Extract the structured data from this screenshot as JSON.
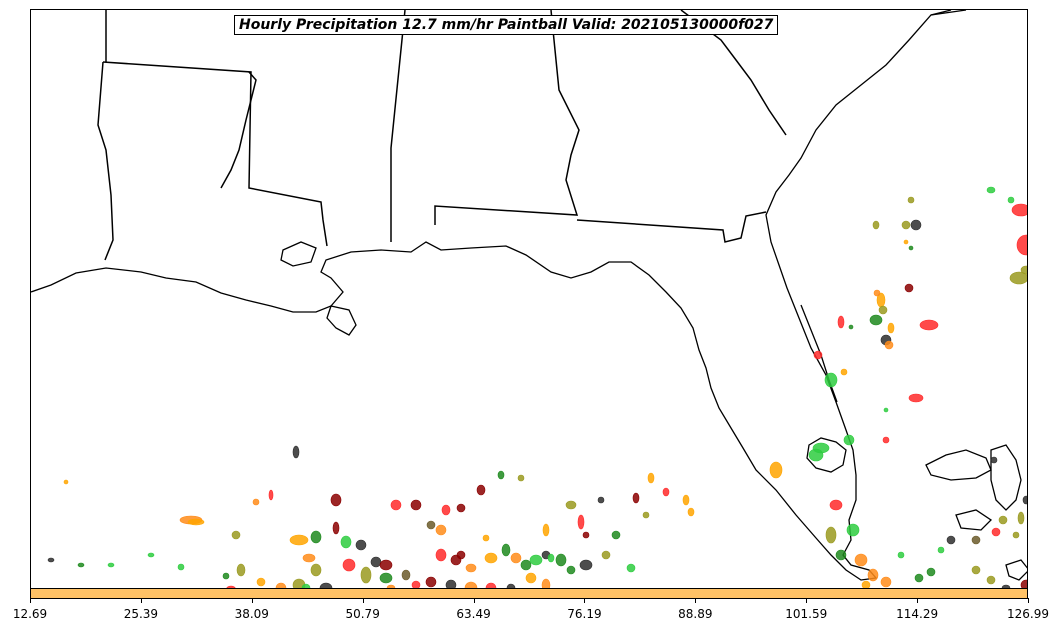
{
  "title": "Hourly Precipitation 12.7 mm/hr Paintball Valid: 202105130000f027",
  "colorbar": {
    "color": "#ffc266",
    "tick_labels": [
      "12.69",
      "25.39",
      "38.09",
      "50.79",
      "63.49",
      "76.19",
      "88.89",
      "101.59",
      "114.29",
      "126.99"
    ]
  },
  "basemap": {
    "features": [
      "coastline",
      "state-borders"
    ],
    "line_color": "#000000"
  },
  "member_colors": [
    "#2e2e2e",
    "#ff2a2a",
    "#8b0000",
    "#ff8c1a",
    "#ffa500",
    "#9a9a20",
    "#1e8a1e",
    "#2ecc40",
    "#6b5b2a"
  ]
}
